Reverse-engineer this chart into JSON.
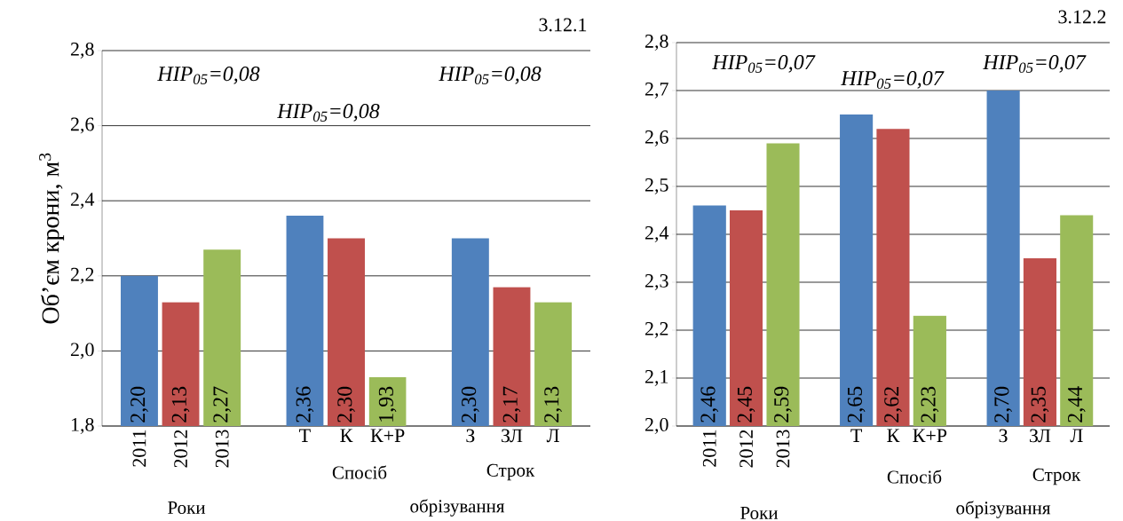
{
  "chart_data": [
    {
      "type": "bar",
      "title": "3.12.1",
      "ylabel": "Об’єм крони, м$^{3}$",
      "categories": [
        "2011",
        "2012",
        "2013",
        null,
        "Т",
        "К",
        "К+Р",
        null,
        "З",
        "ЗЛ",
        "Л"
      ],
      "values": [
        2.2,
        2.13,
        2.27,
        null,
        2.36,
        2.3,
        1.93,
        null,
        2.3,
        2.17,
        2.13
      ],
      "value_labels": [
        "2,20",
        "2,13",
        "2,27",
        null,
        "2,36",
        "2,30",
        "1,93",
        null,
        "2,30",
        "2,17",
        "2,13"
      ],
      "colors": [
        "#4f81bd",
        "#c0504d",
        "#9bbb59",
        null,
        "#4f81bd",
        "#c0504d",
        "#9bbb59",
        null,
        "#4f81bd",
        "#c0504d",
        "#9bbb59"
      ],
      "ylim": [
        1.8,
        2.8
      ],
      "yticks": [
        {
          "value": 1.8,
          "label": "1,8"
        },
        {
          "value": 2.0,
          "label": "2,0"
        },
        {
          "value": 2.2,
          "label": "2,2"
        },
        {
          "value": 2.4,
          "label": "2,4"
        },
        {
          "value": 2.6,
          "label": "2,6"
        },
        {
          "value": 2.8,
          "label": "2,8"
        }
      ],
      "grid": "y",
      "annotations": [
        "HIP$_{05}$=0,08",
        "HIP$_{05}$=0,08",
        "HIP$_{05}$=0,08",
        "Роки",
        "Спосіб",
        "Строк",
        "обрізування"
      ]
    },
    {
      "type": "bar",
      "title": "3.12.2",
      "categories": [
        "2011",
        "2012",
        "2013",
        null,
        "Т",
        "К",
        "К+Р",
        null,
        "З",
        "ЗЛ",
        "Л"
      ],
      "values": [
        2.46,
        2.45,
        2.59,
        null,
        2.65,
        2.62,
        2.23,
        null,
        2.7,
        2.35,
        2.44
      ],
      "value_labels": [
        "2,46",
        "2,45",
        "2,59",
        null,
        "2,65",
        "2,62",
        "2,23",
        null,
        "2,70",
        "2,35",
        "2,44"
      ],
      "colors": [
        "#4f81bd",
        "#c0504d",
        "#9bbb59",
        null,
        "#4f81bd",
        "#c0504d",
        "#9bbb59",
        null,
        "#4f81bd",
        "#c0504d",
        "#9bbb59"
      ],
      "ylim": [
        2.0,
        2.8
      ],
      "yticks": [
        {
          "value": 2.0,
          "label": "2,0"
        },
        {
          "value": 2.1,
          "label": "2,1"
        },
        {
          "value": 2.2,
          "label": "2,2"
        },
        {
          "value": 2.3,
          "label": "2,3"
        },
        {
          "value": 2.4,
          "label": "2,4"
        },
        {
          "value": 2.5,
          "label": "2,5"
        },
        {
          "value": 2.6,
          "label": "2,6"
        },
        {
          "value": 2.7,
          "label": "2,7"
        },
        {
          "value": 2.8,
          "label": "2,8"
        }
      ],
      "grid": "y",
      "annotations": [
        "HIP$_{05}$=0,07",
        "HIP$_{05}$=0,07",
        "HIP$_{05}$=0,07",
        "Роки",
        "Спосіб",
        "Строк",
        "обрізування"
      ]
    }
  ]
}
